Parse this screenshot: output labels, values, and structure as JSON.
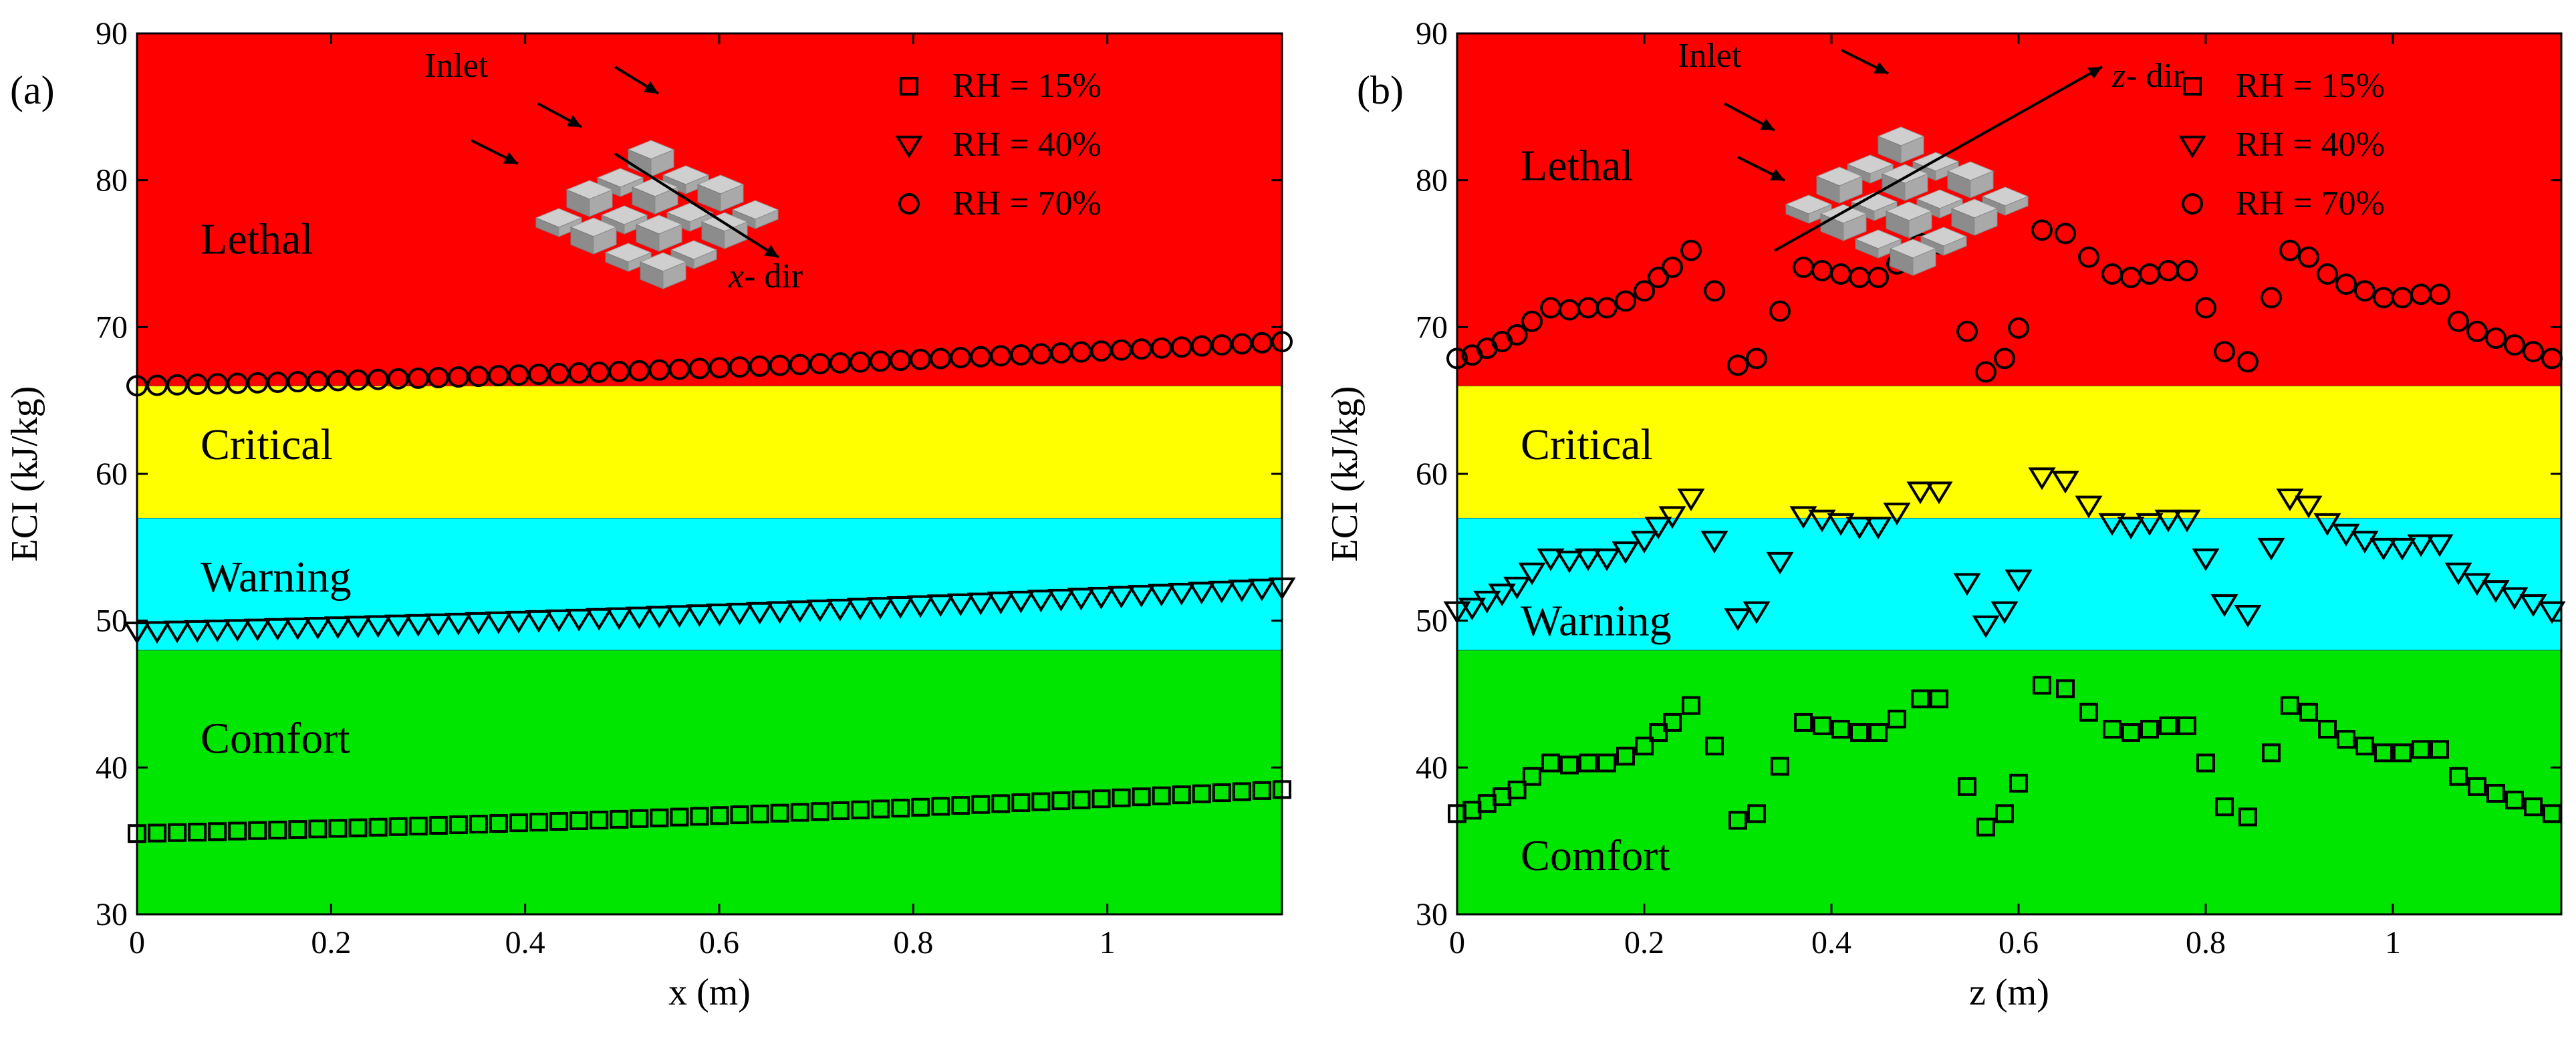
{
  "chart_data": [
    {
      "type": "scatter",
      "panel_label": "(a)",
      "xlabel": "x (m)",
      "ylabel": "ECI (kJ/kg)",
      "xlim": [
        0,
        1.18
      ],
      "ylim": [
        30,
        90
      ],
      "xticks": [
        0,
        0.2,
        0.4,
        0.6,
        0.8,
        1
      ],
      "xtick_labels": [
        "0",
        "0.2",
        "0.4",
        "0.6",
        "0.8",
        "1"
      ],
      "yticks": [
        30,
        40,
        50,
        60,
        70,
        80,
        90
      ],
      "zones": [
        {
          "name": "Comfort",
          "from": 30,
          "to": 48,
          "color": "#00e600"
        },
        {
          "name": "Warning",
          "from": 48,
          "to": 57,
          "color": "#00ffff"
        },
        {
          "name": "Critical",
          "from": 57,
          "to": 66,
          "color": "#ffff00"
        },
        {
          "name": "Lethal",
          "from": 66,
          "to": 90,
          "color": "#ff0000"
        }
      ],
      "zone_label_y": {
        "Comfort": 42,
        "Warning": 53,
        "Critical": 62,
        "Lethal": 76
      },
      "inset": {
        "inlet_label": "Inlet",
        "axis_label_italic": "x",
        "axis_label_rest": "- dir"
      },
      "legend": [
        "RH = 15%",
        "RH = 40%",
        "RH = 70%"
      ],
      "series": [
        {
          "name": "RH = 15%",
          "marker": "square",
          "curve": "linear",
          "start": 35.5,
          "end": 38.5,
          "n": 58
        },
        {
          "name": "RH = 40%",
          "marker": "triangle",
          "curve": "linear",
          "start": 49.3,
          "end": 52.3,
          "n": 58
        },
        {
          "name": "RH = 70%",
          "marker": "circle",
          "curve": "linear",
          "start": 66.0,
          "end": 69.0,
          "n": 58
        }
      ]
    },
    {
      "type": "scatter",
      "panel_label": "(b)",
      "xlabel": "z (m)",
      "ylabel": "ECI (kJ/kg)",
      "xlim": [
        0,
        1.18
      ],
      "ylim": [
        30,
        90
      ],
      "xticks": [
        0,
        0.2,
        0.4,
        0.6,
        0.8,
        1
      ],
      "xtick_labels": [
        "0",
        "0.2",
        "0.4",
        "0.6",
        "0.8",
        "1"
      ],
      "yticks": [
        30,
        40,
        50,
        60,
        70,
        80,
        90
      ],
      "zones": [
        {
          "name": "Comfort",
          "from": 30,
          "to": 48,
          "color": "#00e600"
        },
        {
          "name": "Warning",
          "from": 48,
          "to": 57,
          "color": "#00ffff"
        },
        {
          "name": "Critical",
          "from": 57,
          "to": 66,
          "color": "#ffff00"
        },
        {
          "name": "Lethal",
          "from": 66,
          "to": 90,
          "color": "#ff0000"
        }
      ],
      "zone_label_y": {
        "Comfort": 34,
        "Warning": 50,
        "Critical": 62,
        "Lethal": 81
      },
      "inset": {
        "inlet_label": "Inlet",
        "axis_label_italic": "z",
        "axis_label_rest": "- dir"
      },
      "legend": [
        "RH = 15%",
        "RH = 40%",
        "RH = 70%"
      ],
      "series": [
        {
          "name": "RH = 15%",
          "marker": "square",
          "curve": "profile",
          "base": 41.0,
          "amp": 4.6
        },
        {
          "name": "RH = 40%",
          "marker": "triangle",
          "curve": "profile",
          "base": 55.0,
          "amp": 4.8
        },
        {
          "name": "RH = 70%",
          "marker": "circle",
          "curve": "profile",
          "base": 72.0,
          "amp": 4.6
        }
      ],
      "profile_shape": [
        [
          0.0,
          -0.9
        ],
        [
          0.016,
          -0.85
        ],
        [
          0.032,
          -0.75
        ],
        [
          0.048,
          -0.65
        ],
        [
          0.064,
          -0.55
        ],
        [
          0.08,
          -0.35
        ],
        [
          0.1,
          -0.15
        ],
        [
          0.12,
          -0.18
        ],
        [
          0.14,
          -0.15
        ],
        [
          0.16,
          -0.15
        ],
        [
          0.18,
          -0.05
        ],
        [
          0.2,
          0.1
        ],
        [
          0.215,
          0.3
        ],
        [
          0.23,
          0.45
        ],
        [
          0.25,
          0.7
        ],
        [
          0.275,
          0.1
        ],
        [
          0.3,
          -1.0
        ],
        [
          0.32,
          -0.9
        ],
        [
          0.345,
          -0.2
        ],
        [
          0.37,
          0.45
        ],
        [
          0.39,
          0.4
        ],
        [
          0.41,
          0.35
        ],
        [
          0.43,
          0.3
        ],
        [
          0.45,
          0.3
        ],
        [
          0.47,
          0.5
        ],
        [
          0.495,
          0.8
        ],
        [
          0.515,
          0.8
        ],
        [
          0.545,
          -0.5
        ],
        [
          0.565,
          -1.1
        ],
        [
          0.585,
          -0.9
        ],
        [
          0.6,
          -0.45
        ],
        [
          0.625,
          1.0
        ],
        [
          0.65,
          0.95
        ],
        [
          0.675,
          0.6
        ],
        [
          0.7,
          0.35
        ],
        [
          0.72,
          0.3
        ],
        [
          0.74,
          0.35
        ],
        [
          0.76,
          0.4
        ],
        [
          0.78,
          0.4
        ],
        [
          0.8,
          -0.15
        ],
        [
          0.82,
          -0.8
        ],
        [
          0.845,
          -0.95
        ],
        [
          0.87,
          0.0
        ],
        [
          0.89,
          0.7
        ],
        [
          0.91,
          0.6
        ],
        [
          0.93,
          0.35
        ],
        [
          0.95,
          0.2
        ],
        [
          0.97,
          0.1
        ],
        [
          0.99,
          0.0
        ],
        [
          1.01,
          0.0
        ],
        [
          1.03,
          0.05
        ],
        [
          1.05,
          0.05
        ],
        [
          1.07,
          -0.35
        ],
        [
          1.09,
          -0.5
        ],
        [
          1.11,
          -0.6
        ],
        [
          1.13,
          -0.7
        ],
        [
          1.15,
          -0.8
        ],
        [
          1.17,
          -0.9
        ]
      ]
    }
  ]
}
